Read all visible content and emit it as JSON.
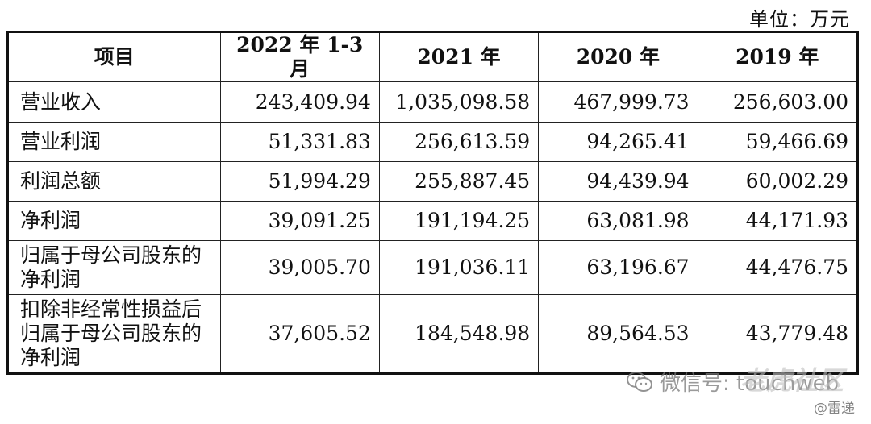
{
  "unit": "单位：万元",
  "table": {
    "headers": [
      "项目",
      "2022 年 1-3 月",
      "2021 年",
      "2020 年",
      "2019 年"
    ],
    "rows": [
      {
        "label": [
          "营业收入"
        ],
        "values": [
          "243,409.94",
          "1,035,098.58",
          "467,999.73",
          "256,603.00"
        ]
      },
      {
        "label": [
          "营业利润"
        ],
        "values": [
          "51,331.83",
          "256,613.59",
          "94,265.41",
          "59,466.69"
        ]
      },
      {
        "label": [
          "利润总额"
        ],
        "values": [
          "51,994.29",
          "255,887.45",
          "94,439.94",
          "60,002.29"
        ]
      },
      {
        "label": [
          "净利润"
        ],
        "values": [
          "39,091.25",
          "191,194.25",
          "63,081.98",
          "44,171.93"
        ]
      },
      {
        "label": [
          "归属于母公司股东的",
          "净利润"
        ],
        "values": [
          "39,005.70",
          "191,036.11",
          "63,196.67",
          "44,476.75"
        ]
      },
      {
        "label": [
          "扣除非经常性损益后",
          "归属于母公司股东的",
          "净利润"
        ],
        "values": [
          "37,605.52",
          "184,548.98",
          "89,564.53",
          "43,779.48"
        ]
      }
    ]
  },
  "watermark": {
    "wechat": "微信号: touchweb",
    "site": "老虎社区",
    "source": "@雷递",
    "icon": "wechat-icon"
  }
}
